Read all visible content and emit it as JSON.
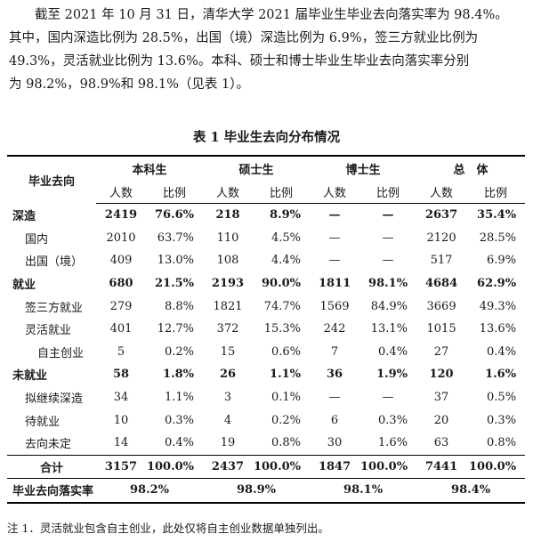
{
  "paragraph": {
    "lines": [
      "截至 2021 年 10 月 31 日，清华大学 2021 届毕业生毕业去向落实率为 98.4%。",
      "其中，国内深造比例为 28.5%，出国（境）深造比例为 6.9%，签三方就业比例为",
      "49.3%，灵活就业比例为 13.6%。本科、硕士和博士毕业生毕业去向落实率分别",
      "为 98.2%，98.9%和 98.1%（见表 1）。"
    ]
  },
  "table_caption": "表 1 毕业生去向分布情况",
  "table": {
    "corner_header": "毕业去向",
    "groups": [
      "本科生",
      "硕士生",
      "博士生",
      "总　体"
    ],
    "subheaders": [
      "人数",
      "比例",
      "人数",
      "比例",
      "人数",
      "比例",
      "人数",
      "比例"
    ],
    "rows": [
      {
        "label": "深造",
        "level": "cat",
        "cells": [
          "2419",
          "76.6%",
          "218",
          "8.9%",
          "—",
          "—",
          "2637",
          "35.4%"
        ]
      },
      {
        "label": "国内",
        "level": "sub",
        "cells": [
          "2010",
          "63.7%",
          "110",
          "4.5%",
          "—",
          "—",
          "2120",
          "28.5%"
        ]
      },
      {
        "label": "出国（境）",
        "level": "sub",
        "cells": [
          "409",
          "13.0%",
          "108",
          "4.4%",
          "—",
          "—",
          "517",
          "6.9%"
        ]
      },
      {
        "label": "就业",
        "level": "cat",
        "cells": [
          "680",
          "21.5%",
          "2193",
          "90.0%",
          "1811",
          "98.1%",
          "4684",
          "62.9%"
        ]
      },
      {
        "label": "签三方就业",
        "level": "sub",
        "cells": [
          "279",
          "8.8%",
          "1821",
          "74.7%",
          "1569",
          "84.9%",
          "3669",
          "49.3%"
        ]
      },
      {
        "label": "灵活就业",
        "level": "sub",
        "cells": [
          "401",
          "12.7%",
          "372",
          "15.3%",
          "242",
          "13.1%",
          "1015",
          "13.6%"
        ]
      },
      {
        "label": "自主创业",
        "level": "subsub",
        "cells": [
          "5",
          "0.2%",
          "15",
          "0.6%",
          "7",
          "0.4%",
          "27",
          "0.4%"
        ]
      },
      {
        "label": "未就业",
        "level": "cat",
        "cells": [
          "58",
          "1.8%",
          "26",
          "1.1%",
          "36",
          "1.9%",
          "120",
          "1.6%"
        ]
      },
      {
        "label": "拟继续深造",
        "level": "sub",
        "cells": [
          "34",
          "1.1%",
          "3",
          "0.1%",
          "—",
          "—",
          "37",
          "0.5%"
        ]
      },
      {
        "label": "待就业",
        "level": "sub",
        "cells": [
          "10",
          "0.3%",
          "4",
          "0.2%",
          "6",
          "0.3%",
          "20",
          "0.3%"
        ]
      },
      {
        "label": "去向未定",
        "level": "sub",
        "cells": [
          "14",
          "0.4%",
          "19",
          "0.8%",
          "30",
          "1.6%",
          "63",
          "0.8%"
        ]
      }
    ],
    "total": {
      "label": "合计",
      "cells": [
        "3157",
        "100.0%",
        "2437",
        "100.0%",
        "1847",
        "100.0%",
        "7441",
        "100.0%"
      ]
    },
    "rate": {
      "label": "毕业去向落实率",
      "cells": [
        "98.2%",
        "98.9%",
        "98.1%",
        "98.4%"
      ]
    }
  },
  "note": "注 1．灵活就业包含自主创业，此处仅将自主创业数据单独列出。"
}
